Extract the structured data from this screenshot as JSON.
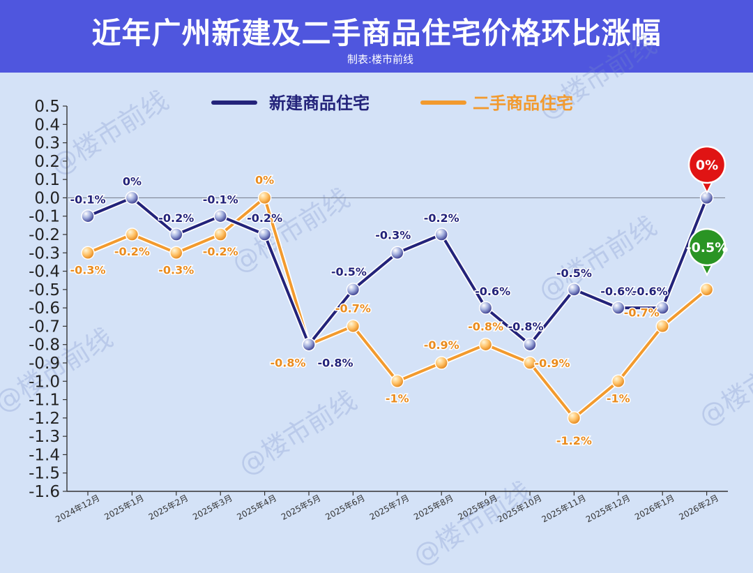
{
  "header": {
    "title": "近年广州新建及二手商品住宅价格环比涨幅",
    "subtitle": "制表:楼市前线"
  },
  "watermark": "@楼市前线",
  "colors": {
    "background": "#d4e2f7",
    "header": "#4f56de",
    "series_new": "#23237a",
    "series_resale": "#f29a2e",
    "badge_red": "#e01414",
    "badge_green": "#2a9424"
  },
  "chart_data": {
    "type": "line",
    "categories": [
      "2024年12月",
      "2025年1月",
      "2025年2月",
      "2025年3月",
      "2025年4月",
      "2025年5月",
      "2025年6月",
      "2025年7月",
      "2025年8月",
      "2025年9月",
      "2025年10月",
      "2025年11月",
      "2025年12月",
      "2026年1月",
      "2026年2月"
    ],
    "series": [
      {
        "name": "新建商品住宅",
        "color": "#23237a",
        "values": [
          -0.1,
          0,
          -0.2,
          -0.1,
          -0.2,
          -0.8,
          -0.5,
          -0.3,
          -0.2,
          -0.6,
          -0.8,
          -0.5,
          -0.6,
          -0.6,
          0
        ],
        "labels": [
          "-0.1%",
          "0%",
          "-0.2%",
          "-0.1%",
          "-0.2%",
          "-0.8%",
          "-0.5%",
          "-0.3%",
          "-0.2%",
          "-0.6%",
          "-0.8%",
          "-0.5%",
          "-0.6%",
          "-0.6%",
          "0%"
        ]
      },
      {
        "name": "二手商品住宅",
        "color": "#f29a2e",
        "values": [
          -0.3,
          -0.2,
          -0.3,
          -0.2,
          0,
          -0.8,
          -0.7,
          -1,
          -0.9,
          -0.8,
          -0.9,
          -1.2,
          -1,
          -0.7,
          -0.5
        ],
        "labels": [
          "-0.3%",
          "-0.2%",
          "-0.3%",
          "-0.2%",
          "0%",
          "-0.8%",
          "-0.7%",
          "-1%",
          "-0.9%",
          "-0.8%",
          "-0.9%",
          "-1.2%",
          "-1%",
          "-0.7%",
          "-0.5%"
        ]
      }
    ],
    "yticks": [
      "0.5",
      "0.4",
      "0.3",
      "0.2",
      "0.1",
      "0.0",
      "-0.1",
      "-0.2",
      "-0.3",
      "-0.4",
      "-0.5",
      "-0.6",
      "-0.7",
      "-0.8",
      "-0.9",
      "-1.0",
      "-1.1",
      "-1.2",
      "-1.3",
      "-1.4",
      "-1.5",
      "-1.6"
    ],
    "ylim": [
      -1.6,
      0.5
    ],
    "legend_position": "top-center",
    "grid": false
  }
}
